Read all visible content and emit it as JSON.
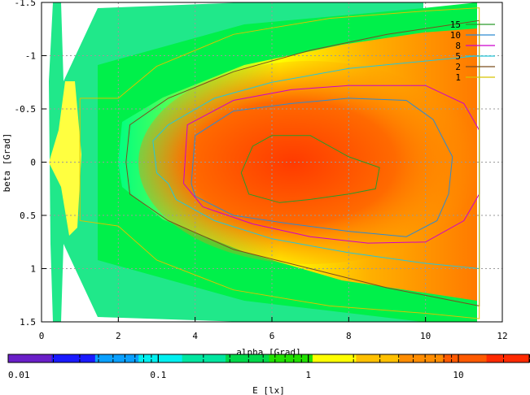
{
  "chart_data": {
    "type": "heatmap",
    "xlabel": "alpha [Grad]",
    "ylabel": "beta [Grad]",
    "xlim": [
      0,
      12
    ],
    "ylim": [
      -1.5,
      1.5
    ],
    "y_reversed": true,
    "x_ticks": [
      "0",
      "2",
      "4",
      "6",
      "8",
      "10",
      "12"
    ],
    "y_ticks": [
      "-1.5",
      "-1",
      "-0.5",
      "0",
      "0.5",
      "1",
      "1.5"
    ],
    "grid": true,
    "legend_position": "top-right",
    "contour_levels": [
      {
        "label": "15",
        "color": "#2a9a2a",
        "value": 15
      },
      {
        "label": "10",
        "color": "#2e8ad0",
        "value": 10
      },
      {
        "label": "8",
        "color": "#cc00cc",
        "value": 8
      },
      {
        "label": "5",
        "color": "#26c6da",
        "value": 5
      },
      {
        "label": "2",
        "color": "#7a4d1e",
        "value": 2
      },
      {
        "label": "1",
        "color": "#d6c400",
        "value": 1
      }
    ],
    "contours": [
      {
        "label": "15",
        "points": [
          [
            5.2,
            0.1
          ],
          [
            5.5,
            -0.15
          ],
          [
            6.0,
            -0.25
          ],
          [
            7.0,
            -0.25
          ],
          [
            8.0,
            -0.05
          ],
          [
            8.8,
            0.05
          ],
          [
            8.7,
            0.25
          ],
          [
            8.0,
            0.3
          ],
          [
            7.0,
            0.35
          ],
          [
            6.2,
            0.38
          ],
          [
            5.4,
            0.3
          ],
          [
            5.2,
            0.1
          ]
        ]
      },
      {
        "label": "10",
        "points": [
          [
            3.9,
            0.2
          ],
          [
            4.0,
            -0.25
          ],
          [
            5.0,
            -0.48
          ],
          [
            6.5,
            -0.55
          ],
          [
            8.0,
            -0.6
          ],
          [
            9.5,
            -0.58
          ],
          [
            10.2,
            -0.4
          ],
          [
            10.7,
            -0.05
          ],
          [
            10.6,
            0.3
          ],
          [
            10.3,
            0.55
          ],
          [
            9.5,
            0.7
          ],
          [
            8.0,
            0.65
          ],
          [
            6.5,
            0.58
          ],
          [
            5.0,
            0.5
          ],
          [
            4.0,
            0.32
          ],
          [
            3.9,
            0.2
          ]
        ]
      },
      {
        "label": "8",
        "points": [
          [
            3.7,
            0.2
          ],
          [
            3.8,
            -0.35
          ],
          [
            5.0,
            -0.58
          ],
          [
            6.5,
            -0.68
          ],
          [
            8.0,
            -0.72
          ],
          [
            10.0,
            -0.72
          ],
          [
            11.0,
            -0.55
          ],
          [
            11.4,
            -0.3
          ],
          [
            11.4,
            0.3
          ],
          [
            11.0,
            0.55
          ],
          [
            10.0,
            0.75
          ],
          [
            8.5,
            0.76
          ],
          [
            7.0,
            0.7
          ],
          [
            5.5,
            0.58
          ],
          [
            4.2,
            0.42
          ],
          [
            3.7,
            0.2
          ]
        ]
      },
      {
        "label": "5",
        "points": [
          [
            3.3,
            0.2
          ],
          [
            3.0,
            0.1
          ],
          [
            2.9,
            -0.2
          ],
          [
            3.3,
            -0.35
          ],
          [
            4.5,
            -0.6
          ],
          [
            6.0,
            -0.75
          ],
          [
            8.0,
            -0.88
          ],
          [
            10.0,
            -0.95
          ],
          [
            11.4,
            -1.0
          ],
          [
            11.4,
            1.0
          ],
          [
            10.0,
            0.95
          ],
          [
            8.0,
            0.85
          ],
          [
            6.0,
            0.72
          ],
          [
            4.5,
            0.55
          ],
          [
            3.5,
            0.35
          ],
          [
            3.3,
            0.2
          ]
        ]
      },
      {
        "label": "2",
        "points": [
          [
            2.2,
            0
          ],
          [
            2.3,
            -0.35
          ],
          [
            3.3,
            -0.6
          ],
          [
            5.0,
            -0.85
          ],
          [
            7.0,
            -1.05
          ],
          [
            9.0,
            -1.2
          ],
          [
            11.4,
            -1.33
          ],
          [
            11.4,
            1.35
          ],
          [
            9.0,
            1.18
          ],
          [
            7.0,
            1.0
          ],
          [
            5.0,
            0.82
          ],
          [
            3.3,
            0.55
          ],
          [
            2.3,
            0.3
          ],
          [
            2.2,
            0
          ]
        ]
      },
      {
        "label": "1",
        "points": [
          [
            1.0,
            -0.6
          ],
          [
            2.0,
            -0.6
          ],
          [
            3.0,
            -0.9
          ],
          [
            5.0,
            -1.2
          ],
          [
            7.5,
            -1.35
          ],
          [
            10.0,
            -1.42
          ],
          [
            11.4,
            -1.45
          ],
          [
            11.4,
            1.47
          ],
          [
            10.0,
            1.42
          ],
          [
            7.5,
            1.35
          ],
          [
            5.0,
            1.2
          ],
          [
            3.0,
            0.92
          ],
          [
            2.0,
            0.6
          ],
          [
            1.0,
            0.55
          ],
          [
            1.0,
            -0.6
          ]
        ]
      }
    ],
    "colorbar": {
      "label": "E [lx]",
      "scale": "log",
      "range": [
        0.01,
        30
      ],
      "ticks": [
        "0.01",
        "0.1",
        "1",
        "10"
      ],
      "colors": [
        "#6a1fc8",
        "#1a1aff",
        "#0aa0ff",
        "#00f0f0",
        "#00e6a0",
        "#00d84a",
        "#22e000",
        "#ffff00",
        "#ffc000",
        "#ff8c00",
        "#ff5a00",
        "#ff2a00"
      ]
    }
  }
}
